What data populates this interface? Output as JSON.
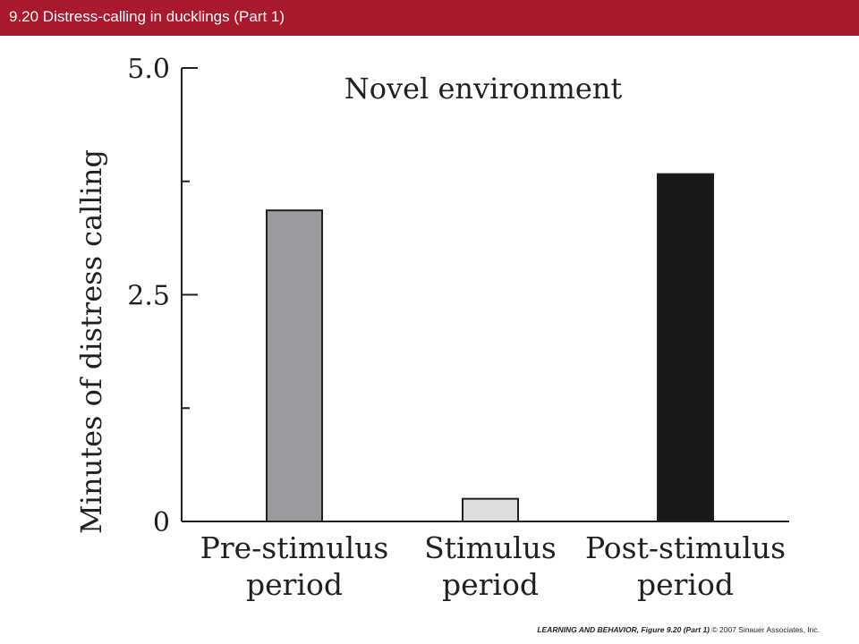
{
  "header": {
    "title": "9.20  Distress-calling in ducklings (Part 1)"
  },
  "colors": {
    "header_bg": "#a8192e",
    "pre_bar": "#999b9e",
    "stim_bar": "#dcddde",
    "post_bar": "#1a1818"
  },
  "chart_data": {
    "type": "bar",
    "title": "Novel environment",
    "ylabel": "Minutes of distress calling",
    "xlabel": "",
    "categories": [
      [
        "Pre-stimulus",
        "period"
      ],
      [
        "Stimulus",
        "period"
      ],
      [
        "Post-stimulus",
        "period"
      ]
    ],
    "values": [
      3.43,
      0.25,
      3.83
    ],
    "ylim": [
      0,
      5.0
    ],
    "yticks": [
      0,
      1.25,
      2.5,
      3.75,
      5.0
    ],
    "ytick_labels": [
      "0",
      "",
      "2.5",
      "",
      "5.0"
    ],
    "grid": false
  },
  "footer": {
    "book_title": "LEARNING AND BEHAVIOR,",
    "figure": " Figure 9.20 (Part 1)",
    "copyright": "  © 2007 Sinauer Associates, Inc."
  }
}
